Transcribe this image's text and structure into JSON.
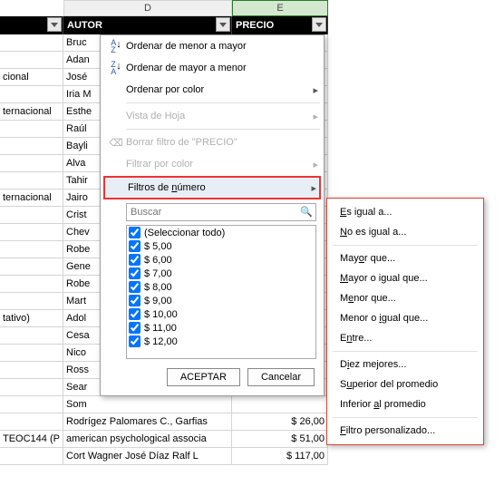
{
  "columns": {
    "d_letter": "D",
    "e_letter": "E",
    "d_header": "AUTOR",
    "e_header": "PRECIO"
  },
  "rows": [
    {
      "c": "",
      "d": "Bruc",
      "e": ""
    },
    {
      "c": "",
      "d": "Adan",
      "e": ""
    },
    {
      "c": "cional",
      "d": "José",
      "e": ""
    },
    {
      "c": "",
      "d": "Iria M",
      "e": ""
    },
    {
      "c": "ternacional",
      "d": "Esthe",
      "e": ""
    },
    {
      "c": "",
      "d": "Raúl",
      "e": ""
    },
    {
      "c": "",
      "d": "Bayli",
      "e": ""
    },
    {
      "c": "",
      "d": "Alva",
      "e": ""
    },
    {
      "c": "",
      "d": "Tahir",
      "e": ""
    },
    {
      "c": "ternacional",
      "d": "Jairo",
      "e": ""
    },
    {
      "c": "",
      "d": "Crist",
      "e": ""
    },
    {
      "c": "",
      "d": "Chev",
      "e": ""
    },
    {
      "c": "",
      "d": "Robe",
      "e": ""
    },
    {
      "c": "",
      "d": "Gene",
      "e": ""
    },
    {
      "c": "",
      "d": "Robe",
      "e": ""
    },
    {
      "c": "",
      "d": "Mart",
      "e": ""
    },
    {
      "c": "tativo)",
      "d": "Adol",
      "e": ""
    },
    {
      "c": "",
      "d": "Cesa",
      "e": ""
    },
    {
      "c": "",
      "d": "Nico",
      "e": ""
    },
    {
      "c": "",
      "d": "Ross",
      "e": ""
    },
    {
      "c": "",
      "d": "Sear",
      "e": ""
    },
    {
      "c": "",
      "d": "Som",
      "e": ""
    },
    {
      "c": "",
      "d": "Rodrígez Palomares C., Garfias",
      "e": "$ 26,00"
    },
    {
      "c": " TEOC144 (P",
      "d": "american psychological associa",
      "e": "$ 51,00"
    },
    {
      "c": "",
      "d": "Cort Wagner   José Díaz   Ralf L",
      "e": "$ 117,00"
    }
  ],
  "menu": {
    "sort_asc": "Ordenar de menor a mayor",
    "sort_desc": "Ordenar de mayor a menor",
    "sort_color": "Ordenar por color",
    "sheet_view": "Vista de Hoja",
    "clear_filter": "Borrar filtro de \"PRECIO\"",
    "filter_color": "Filtrar por color",
    "number_filters": "Filtros de número",
    "search_placeholder": "Buscar",
    "select_all": "(Seleccionar todo)",
    "values": [
      "$ 5,00",
      "$ 6,00",
      "$ 7,00",
      "$ 8,00",
      "$ 9,00",
      "$ 10,00",
      "$ 11,00",
      "$ 12,00"
    ],
    "ok": "ACEPTAR",
    "cancel": "Cancelar"
  },
  "submenu": {
    "equals": "Es igual a...",
    "not_equals": "No es igual a...",
    "greater": "Mayor que...",
    "greater_eq": "Mayor o igual que...",
    "less": "Menor que...",
    "less_eq": "Menor o igual que...",
    "between": "Entre...",
    "top10": "Diez mejores...",
    "above_avg": "Superior del promedio",
    "below_avg": "Inferior al promedio",
    "custom": "Filtro personalizado..."
  }
}
